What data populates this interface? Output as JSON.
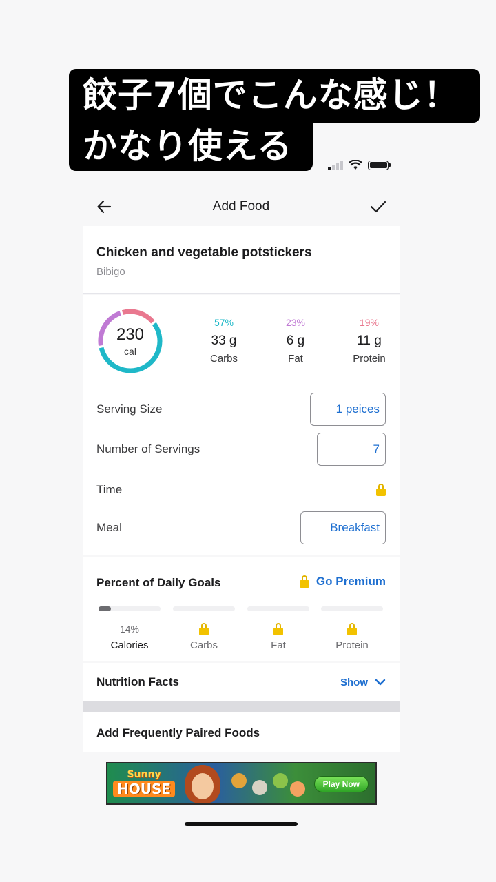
{
  "caption": {
    "line1": "餃子7個でこんな感じ！",
    "line2": "かなり使える"
  },
  "header": {
    "title": "Add Food",
    "back_icon": "arrow-left-icon",
    "confirm_icon": "checkmark-icon"
  },
  "food": {
    "name": "Chicken and vegetable potstickers",
    "brand": "Bibigo"
  },
  "calories": {
    "value": "230",
    "unit": "cal",
    "ring_segments": [
      {
        "name": "carbs",
        "fraction": 0.57,
        "color": "#1fb8c8"
      },
      {
        "name": "fat",
        "fraction": 0.23,
        "color": "#c07ad4"
      },
      {
        "name": "protein",
        "fraction": 0.19,
        "color": "#e9788f"
      }
    ]
  },
  "macros": [
    {
      "pct": "57%",
      "amount": "33 g",
      "label": "Carbs",
      "color": "#1fb8c8"
    },
    {
      "pct": "23%",
      "amount": "6 g",
      "label": "Fat",
      "color": "#c07ad4"
    },
    {
      "pct": "19%",
      "amount": "11 g",
      "label": "Protein",
      "color": "#e9788f"
    }
  ],
  "fields": {
    "serving_size_label": "Serving Size",
    "serving_size_value": "1 peices",
    "servings_label": "Number of Servings",
    "servings_value": "7",
    "time_label": "Time",
    "meal_label": "Meal",
    "meal_value": "Breakfast"
  },
  "goals": {
    "title": "Percent of Daily Goals",
    "premium_label": "Go Premium",
    "items": [
      {
        "value": "14%",
        "label": "Calories",
        "progress": 0.14,
        "locked": false
      },
      {
        "value": "",
        "label": "Carbs",
        "progress": 0,
        "locked": true
      },
      {
        "value": "",
        "label": "Fat",
        "progress": 0,
        "locked": true
      },
      {
        "value": "",
        "label": "Protein",
        "progress": 0,
        "locked": true
      }
    ]
  },
  "nutrition": {
    "title": "Nutrition Facts",
    "show_label": "Show"
  },
  "paired": {
    "title": "Add Frequently Paired Foods"
  },
  "ad": {
    "logo_top": "Sunny",
    "logo_bottom": "HOUSE",
    "cta": "Play Now"
  },
  "colors": {
    "accent_blue": "#1e6fd0",
    "lock_yellow": "#f2c200"
  }
}
